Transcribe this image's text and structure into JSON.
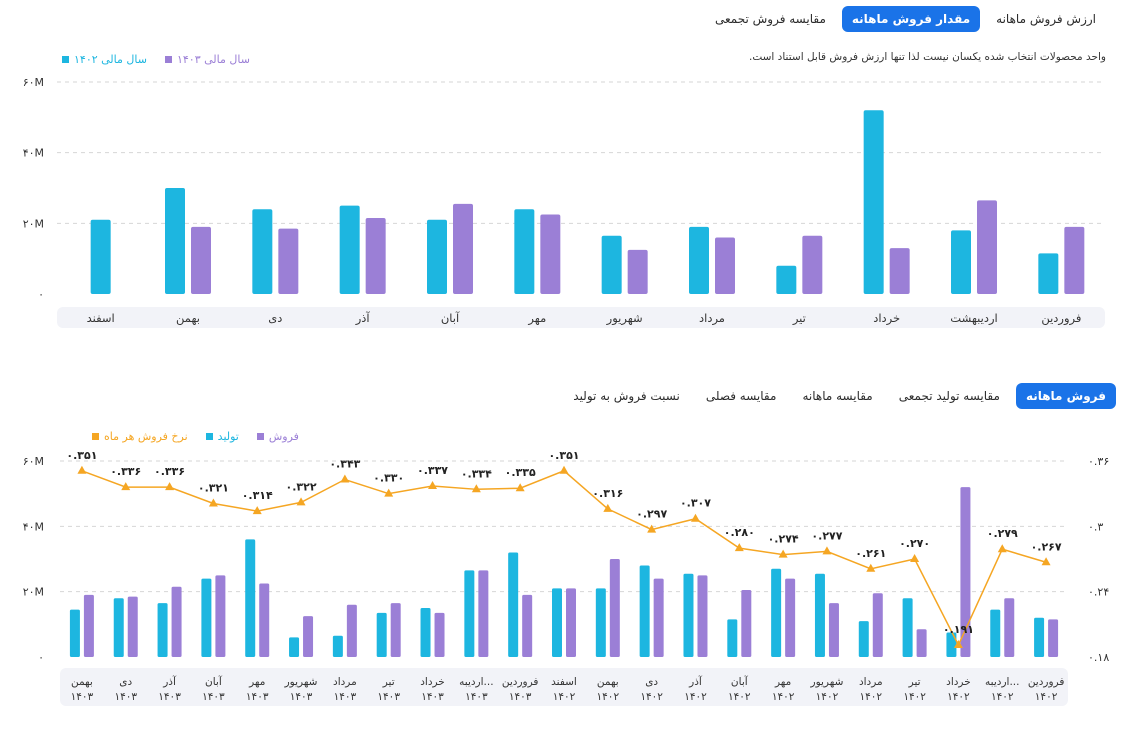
{
  "top_tabs": [
    {
      "label": "ارزش فروش ماهانه",
      "active": false
    },
    {
      "label": "مقدار فروش ماهانه",
      "active": true
    },
    {
      "label": "مقایسه فروش تجمعی",
      "active": false
    }
  ],
  "note": "واحد محصولات انتخاب شده یکسان نیست لذا تنها ارزش فروش قابل استناد است.",
  "bottom_tabs": [
    {
      "label": "فروش ماهانه",
      "active": true
    },
    {
      "label": "مقایسه تولید تجمعی",
      "active": false
    },
    {
      "label": "مقایسه ماهانه",
      "active": false
    },
    {
      "label": "مقایسه فصلی",
      "active": false
    },
    {
      "label": "نسبت فروش به تولید",
      "active": false
    }
  ],
  "colors": {
    "cyan": "#1db6e0",
    "purple": "#9b7fd6",
    "orange": "#f5a623",
    "accent": "#1a73e8"
  },
  "chart_data": [
    {
      "type": "bar",
      "categories": [
        "فروردین",
        "اردیبهشت",
        "خرداد",
        "تیر",
        "مرداد",
        "شهریور",
        "مهر",
        "آبان",
        "آذر",
        "دی",
        "بهمن",
        "اسفند"
      ],
      "series": [
        {
          "name": "سال مالی ۱۴۰۲",
          "color": "#1db6e0",
          "values": [
            11.5,
            18,
            52,
            8,
            19,
            16.5,
            24,
            21,
            25,
            24,
            30,
            21
          ]
        },
        {
          "name": "سال مالی ۱۴۰۳",
          "color": "#9b7fd6",
          "values": [
            19,
            26.5,
            13,
            16.5,
            16,
            12.5,
            22.5,
            25.5,
            21.5,
            18.5,
            19,
            null
          ]
        }
      ],
      "y_ticks": [
        "۰",
        "۲۰M",
        "۴۰M",
        "۶۰M"
      ],
      "ylim": [
        0,
        60
      ],
      "grid": true,
      "legend": "top-left"
    },
    {
      "type": "bar",
      "categories": [
        [
          "فروردین",
          "۱۴۰۲"
        ],
        [
          "اردیبه...",
          "۱۴۰۲"
        ],
        [
          "خرداد",
          "۱۴۰۲"
        ],
        [
          "تیر",
          "۱۴۰۲"
        ],
        [
          "مرداد",
          "۱۴۰۲"
        ],
        [
          "شهریور",
          "۱۴۰۲"
        ],
        [
          "مهر",
          "۱۴۰۲"
        ],
        [
          "آبان",
          "۱۴۰۲"
        ],
        [
          "آذر",
          "۱۴۰۲"
        ],
        [
          "دی",
          "۱۴۰۲"
        ],
        [
          "بهمن",
          "۱۴۰۲"
        ],
        [
          "اسفند",
          "۱۴۰۲"
        ],
        [
          "فروردین",
          "۱۴۰۳"
        ],
        [
          "اردیبه...",
          "۱۴۰۳"
        ],
        [
          "خرداد",
          "۱۴۰۳"
        ],
        [
          "تیر",
          "۱۴۰۳"
        ],
        [
          "مرداد",
          "۱۴۰۳"
        ],
        [
          "شهریور",
          "۱۴۰۳"
        ],
        [
          "مهر",
          "۱۴۰۳"
        ],
        [
          "آبان",
          "۱۴۰۳"
        ],
        [
          "آذر",
          "۱۴۰۳"
        ],
        [
          "دی",
          "۱۴۰۳"
        ],
        [
          "بهمن",
          "۱۴۰۳"
        ]
      ],
      "series": [
        {
          "name": "تولید",
          "color": "#1db6e0",
          "values": [
            12,
            14.5,
            7.5,
            18,
            11,
            25.5,
            27,
            11.5,
            25.5,
            28,
            21,
            21,
            32,
            26.5,
            15,
            13.5,
            6.5,
            6,
            36,
            24,
            16.5,
            18,
            14.5
          ]
        },
        {
          "name": "فروش",
          "color": "#9b7fd6",
          "values": [
            11.5,
            18,
            52,
            8.5,
            19.5,
            16.5,
            24,
            20.5,
            25,
            24,
            30,
            21,
            19,
            26.5,
            13.5,
            16.5,
            16,
            12.5,
            22.5,
            25,
            21.5,
            18.5,
            19
          ]
        },
        {
          "name": "نرخ فروش هر ماه",
          "color": "#f5a623",
          "type": "line",
          "axis": "right",
          "values": [
            0.267,
            0.279,
            0.191,
            0.27,
            0.261,
            0.277,
            0.274,
            0.28,
            0.307,
            0.297,
            0.316,
            0.351,
            0.335,
            0.334,
            0.337,
            0.33,
            0.343,
            0.322,
            0.314,
            0.321,
            0.336,
            0.336,
            0.351
          ],
          "labels": [
            "۰.۲۶۷",
            "۰.۲۷۹",
            "۰.۱۹۱",
            "۰.۲۷۰",
            "۰.۲۶۱",
            "۰.۲۷۷",
            "۰.۲۷۴",
            "۰.۲۸۰",
            "۰.۳۰۷",
            "۰.۲۹۷",
            "۰.۳۱۶",
            "۰.۳۵۱",
            "۰.۳۳۵",
            "۰.۳۳۴",
            "۰.۳۳۷",
            "۰.۳۳۰",
            "۰.۳۴۳",
            "۰.۳۲۲",
            "۰.۳۱۴",
            "۰.۳۲۱",
            "۰.۳۳۶",
            "۰.۳۳۶",
            "۰.۳۵۱"
          ]
        }
      ],
      "y_ticks": [
        "۰",
        "۲۰M",
        "۴۰M",
        "۶۰M"
      ],
      "ylim": [
        0,
        60
      ],
      "y2_ticks": [
        "۰.۱۸",
        "۰.۲۴",
        "۰.۳",
        "۰.۳۶"
      ],
      "y2lim": [
        0.18,
        0.36
      ],
      "grid": true,
      "legend": "top-left"
    }
  ]
}
